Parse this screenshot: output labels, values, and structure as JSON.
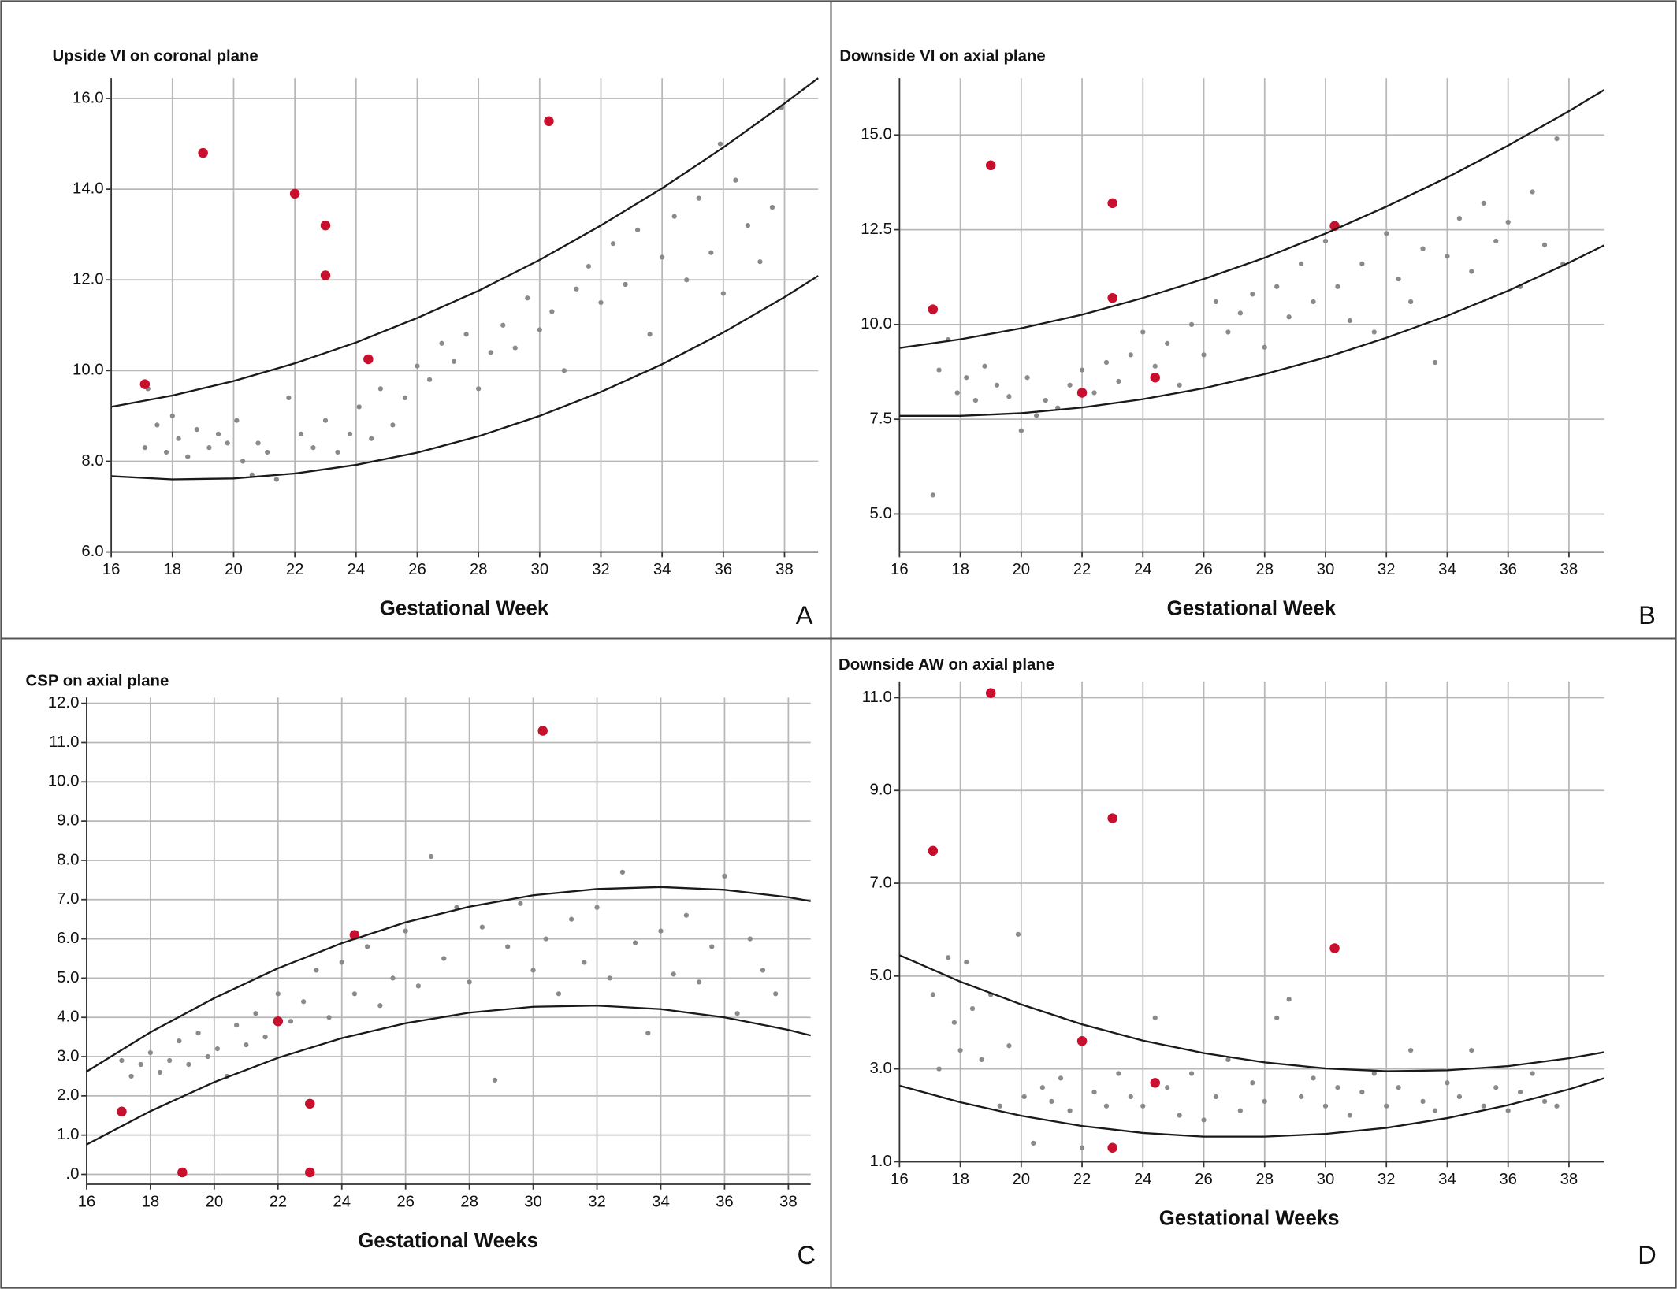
{
  "chart_data": [
    {
      "type": "scatter",
      "title": "Upside VI on coronal plane",
      "xlabel": "Gestational Week",
      "panel": "A",
      "xlim": [
        16,
        39.1
      ],
      "ylim": [
        6,
        16.45
      ],
      "grid": true,
      "xticks": [
        16,
        18,
        20,
        22,
        24,
        26,
        28,
        30,
        32,
        34,
        36,
        38
      ],
      "yticks": [
        {
          "value": 6,
          "label": "6.0"
        },
        {
          "value": 8,
          "label": "8.0"
        },
        {
          "value": 10,
          "label": "10.0"
        },
        {
          "value": 12,
          "label": "12.0"
        },
        {
          "value": 14,
          "label": "14.0"
        },
        {
          "value": 16,
          "label": "16.0"
        }
      ],
      "series": [
        {
          "marker": "dot",
          "color": "#8a8a8a",
          "x": [
            17.1,
            17.2,
            17.5,
            17.8,
            18,
            18.2,
            18.5,
            18.8,
            19.2,
            19.5,
            19.8,
            20.1,
            20.3,
            20.6,
            20.8,
            21.1,
            21.4,
            21.8,
            22.2,
            22.6,
            23,
            23.4,
            23.8,
            24.1,
            24.5,
            24.8,
            25.2,
            25.6,
            26,
            26.4,
            26.8,
            27.2,
            27.6,
            28,
            28.4,
            28.8,
            29.2,
            29.6,
            30,
            30.4,
            30.8,
            31.2,
            31.6,
            32,
            32.4,
            32.8,
            33.2,
            33.6,
            34,
            34.4,
            34.8,
            35.2,
            35.6,
            36,
            36.4,
            36.8,
            37.2,
            37.6,
            37.9,
            35.9
          ],
          "values": [
            8.3,
            9.6,
            8.8,
            8.2,
            9,
            8.5,
            8.1,
            8.7,
            8.3,
            8.6,
            8.4,
            8.9,
            8,
            7.7,
            8.4,
            8.2,
            7.6,
            9.4,
            8.6,
            8.3,
            8.9,
            8.2,
            8.6,
            9.2,
            8.5,
            9.6,
            8.8,
            9.4,
            10.1,
            9.8,
            10.6,
            10.2,
            10.8,
            9.6,
            10.4,
            11,
            10.5,
            11.6,
            10.9,
            11.3,
            10,
            11.8,
            12.3,
            11.5,
            12.8,
            11.9,
            13.1,
            10.8,
            12.5,
            13.4,
            12,
            13.8,
            12.6,
            11.7,
            14.2,
            13.2,
            12.4,
            13.6,
            15.8,
            15
          ]
        },
        {
          "marker": "circle",
          "color": "#c8102e",
          "x": [
            17.1,
            19,
            22,
            23,
            23,
            24.4,
            30.3
          ],
          "values": [
            9.7,
            14.8,
            13.9,
            13.2,
            12.1,
            10.25,
            15.5
          ]
        },
        {
          "marker": "line",
          "color": "#1a1a1a",
          "x": [
            16,
            18,
            20,
            22,
            24,
            26,
            28,
            30,
            32,
            34,
            36,
            38,
            39.1
          ],
          "values": [
            9.2,
            9.45,
            9.77,
            10.16,
            10.62,
            11.16,
            11.76,
            12.44,
            13.2,
            14.02,
            14.92,
            15.89,
            16.45
          ]
        },
        {
          "marker": "line",
          "color": "#1a1a1a",
          "x": [
            16,
            18,
            20,
            22,
            24,
            26,
            28,
            30,
            32,
            34,
            36,
            38,
            39.1
          ],
          "values": [
            7.67,
            7.6,
            7.62,
            7.73,
            7.92,
            8.19,
            8.55,
            9,
            9.53,
            10.14,
            10.84,
            11.62,
            12.09
          ]
        }
      ]
    },
    {
      "type": "scatter",
      "title": "Downside VI on axial plane",
      "xlabel": "Gestational Week",
      "panel": "B",
      "xlim": [
        16,
        39.16
      ],
      "ylim": [
        4,
        16.5
      ],
      "grid": true,
      "xticks": [
        16,
        18,
        20,
        22,
        24,
        26,
        28,
        30,
        32,
        34,
        36,
        38
      ],
      "yticks": [
        {
          "value": 5,
          "label": "5.0"
        },
        7.5,
        {
          "value": 10,
          "label": "10.0"
        },
        12.5,
        {
          "value": 15,
          "label": "15.0"
        }
      ],
      "series": [
        {
          "marker": "dot",
          "color": "#8a8a8a",
          "x": [
            17.1,
            17.3,
            17.6,
            17.9,
            18.2,
            18.5,
            18.8,
            19.2,
            19.6,
            20,
            20.2,
            20.5,
            20.8,
            21.2,
            21.6,
            22,
            22.4,
            22.8,
            23.2,
            23.6,
            24,
            24.4,
            24.8,
            25.2,
            25.6,
            26,
            26.4,
            26.8,
            27.2,
            27.6,
            28,
            28.4,
            28.8,
            29.2,
            29.6,
            30,
            30.4,
            30.8,
            31.2,
            31.6,
            32,
            32.4,
            32.8,
            33.2,
            33.6,
            34,
            34.4,
            34.8,
            35.2,
            35.6,
            36,
            36.4,
            36.8,
            37.2,
            37.6,
            37.8
          ],
          "values": [
            5.5,
            8.8,
            9.6,
            8.2,
            8.6,
            8,
            8.9,
            8.4,
            8.1,
            7.2,
            8.6,
            7.6,
            8,
            7.8,
            8.4,
            8.8,
            8.2,
            9,
            8.5,
            9.2,
            9.8,
            8.9,
            9.5,
            8.4,
            10,
            9.2,
            10.6,
            9.8,
            10.3,
            10.8,
            9.4,
            11,
            10.2,
            11.6,
            10.6,
            12.2,
            11,
            10.1,
            11.6,
            9.8,
            12.4,
            11.2,
            10.6,
            12,
            9,
            11.8,
            12.8,
            11.4,
            13.2,
            12.2,
            12.7,
            11,
            13.5,
            12.1,
            14.9,
            11.6
          ]
        },
        {
          "marker": "circle",
          "color": "#c8102e",
          "x": [
            17.1,
            19,
            22,
            23,
            23,
            24.4,
            30.3
          ],
          "values": [
            10.4,
            14.2,
            8.2,
            13.2,
            10.7,
            8.6,
            12.6
          ]
        },
        {
          "marker": "line",
          "color": "#1a1a1a",
          "x": [
            16,
            18,
            20,
            22,
            24,
            26,
            28,
            30,
            32,
            34,
            36,
            38,
            39.16
          ],
          "values": [
            9.38,
            9.61,
            9.9,
            10.26,
            10.7,
            11.2,
            11.76,
            12.4,
            13.11,
            13.88,
            14.72,
            15.63,
            16.19
          ]
        },
        {
          "marker": "line",
          "color": "#1a1a1a",
          "x": [
            16,
            18,
            20,
            22,
            24,
            26,
            28,
            30,
            32,
            34,
            36,
            38,
            39.16
          ],
          "values": [
            7.59,
            7.59,
            7.66,
            7.81,
            8.03,
            8.32,
            8.69,
            9.13,
            9.65,
            10.23,
            10.89,
            11.63,
            12.09
          ]
        }
      ]
    },
    {
      "type": "scatter",
      "title": "CSP on axial plane",
      "xlabel": "Gestational Weeks",
      "panel": "C",
      "xlim": [
        16,
        38.7
      ],
      "ylim": [
        -0.25,
        12.15
      ],
      "grid": true,
      "xticks": [
        16,
        18,
        20,
        22,
        24,
        26,
        28,
        30,
        32,
        34,
        36,
        38
      ],
      "yticks": [
        {
          "value": 0,
          "label": ".0"
        },
        {
          "value": 1,
          "label": "1.0"
        },
        {
          "value": 2,
          "label": "2.0"
        },
        {
          "value": 3,
          "label": "3.0"
        },
        {
          "value": 4,
          "label": "4.0"
        },
        {
          "value": 5,
          "label": "5.0"
        },
        {
          "value": 6,
          "label": "6.0"
        },
        {
          "value": 7,
          "label": "7.0"
        },
        {
          "value": 8,
          "label": "8.0"
        },
        {
          "value": 9,
          "label": "9.0"
        },
        {
          "value": 10,
          "label": "10.0"
        },
        {
          "value": 11,
          "label": "11.0"
        },
        {
          "value": 12,
          "label": "12.0"
        }
      ],
      "series": [
        {
          "marker": "dot",
          "color": "#8a8a8a",
          "x": [
            17.1,
            17.4,
            17.7,
            18,
            18.3,
            18.6,
            18.9,
            19.2,
            19.5,
            19.8,
            20.1,
            20.4,
            20.7,
            21,
            21.3,
            21.6,
            22,
            22.4,
            22.8,
            23.2,
            23.6,
            24,
            24.4,
            24.8,
            25.2,
            25.6,
            26,
            26.4,
            26.8,
            27.2,
            27.6,
            28,
            28.4,
            28.8,
            29.2,
            29.6,
            30,
            30.4,
            30.8,
            31.2,
            31.6,
            32,
            32.4,
            32.8,
            33.2,
            33.6,
            34,
            34.4,
            34.8,
            35.2,
            35.6,
            36,
            36.4,
            36.8,
            37.2,
            37.6
          ],
          "values": [
            2.9,
            2.5,
            2.8,
            3.1,
            2.6,
            2.9,
            3.4,
            2.8,
            3.6,
            3,
            3.2,
            2.5,
            3.8,
            3.3,
            4.1,
            3.5,
            4.6,
            3.9,
            4.4,
            5.2,
            4,
            5.4,
            4.6,
            5.8,
            4.3,
            5,
            6.2,
            4.8,
            8.1,
            5.5,
            6.8,
            4.9,
            6.3,
            2.4,
            5.8,
            6.9,
            5.2,
            6,
            4.6,
            6.5,
            5.4,
            6.8,
            5,
            7.7,
            5.9,
            3.6,
            6.2,
            5.1,
            6.6,
            4.9,
            5.8,
            7.6,
            4.1,
            6,
            5.2,
            4.6
          ]
        },
        {
          "marker": "circle",
          "color": "#c8102e",
          "x": [
            17.1,
            19,
            22,
            23,
            23,
            24.4,
            30.3
          ],
          "values": [
            1.6,
            0.05,
            3.9,
            1.8,
            0.05,
            6.1,
            11.3
          ]
        },
        {
          "marker": "line",
          "color": "#1a1a1a",
          "x": [
            16,
            18,
            20,
            22,
            24,
            26,
            28,
            30,
            32,
            34,
            36,
            38,
            38.7
          ],
          "values": [
            2.62,
            3.62,
            4.49,
            5.25,
            5.89,
            6.42,
            6.82,
            7.11,
            7.27,
            7.32,
            7.25,
            7.06,
            6.96
          ]
        },
        {
          "marker": "line",
          "color": "#1a1a1a",
          "x": [
            16,
            18,
            20,
            22,
            24,
            26,
            28,
            30,
            32,
            34,
            36,
            38,
            38.7
          ],
          "values": [
            0.76,
            1.61,
            2.35,
            2.97,
            3.47,
            3.85,
            4.12,
            4.27,
            4.3,
            4.21,
            4,
            3.68,
            3.54
          ]
        }
      ]
    },
    {
      "type": "scatter",
      "title": "Downside AW on axial plane",
      "xlabel": "Gestational Weeks",
      "panel": "D",
      "xlim": [
        16,
        39.16
      ],
      "ylim": [
        1,
        11.35
      ],
      "grid": true,
      "xticks": [
        16,
        18,
        20,
        22,
        24,
        26,
        28,
        30,
        32,
        34,
        36,
        38
      ],
      "yticks": [
        {
          "value": 1,
          "label": "1.0"
        },
        {
          "value": 3,
          "label": "3.0"
        },
        {
          "value": 5,
          "label": "5.0"
        },
        {
          "value": 7,
          "label": "7.0"
        },
        {
          "value": 9,
          "label": "9.0"
        },
        {
          "value": 11,
          "label": "11.0"
        }
      ],
      "series": [
        {
          "marker": "dot",
          "color": "#8a8a8a",
          "x": [
            17.1,
            17.3,
            17.6,
            17.8,
            18,
            18.2,
            18.4,
            18.7,
            19,
            19.3,
            19.6,
            19.9,
            20.1,
            20.4,
            20.7,
            21,
            21.3,
            21.6,
            22,
            22.4,
            22.8,
            23.2,
            23.6,
            24,
            24.4,
            24.8,
            25.2,
            25.6,
            26,
            26.4,
            26.8,
            27.2,
            27.6,
            28,
            28.4,
            28.8,
            29.2,
            29.6,
            30,
            30.4,
            30.8,
            31.2,
            31.6,
            32,
            32.4,
            32.8,
            33.2,
            33.6,
            34,
            34.4,
            34.8,
            35.2,
            35.6,
            36,
            36.4,
            36.8,
            37.2,
            37.6
          ],
          "values": [
            4.6,
            3,
            5.4,
            4,
            3.4,
            5.3,
            4.3,
            3.2,
            4.6,
            2.2,
            3.5,
            5.9,
            2.4,
            1.4,
            2.6,
            2.3,
            2.8,
            2.1,
            1.3,
            2.5,
            2.2,
            2.9,
            2.4,
            2.2,
            4.1,
            2.6,
            2,
            2.9,
            1.9,
            2.4,
            3.2,
            2.1,
            2.7,
            2.3,
            4.1,
            4.5,
            2.4,
            2.8,
            2.2,
            2.6,
            2,
            2.5,
            2.9,
            2.2,
            2.6,
            3.4,
            2.3,
            2.1,
            2.7,
            2.4,
            3.4,
            2.2,
            2.6,
            2.1,
            2.5,
            2.9,
            2.3,
            2.2
          ]
        },
        {
          "marker": "circle",
          "color": "#c8102e",
          "x": [
            17.1,
            19,
            22,
            23,
            23,
            24.4,
            30.3
          ],
          "values": [
            7.7,
            11.1,
            3.6,
            8.4,
            1.3,
            2.7,
            5.6
          ]
        },
        {
          "marker": "line",
          "color": "#1a1a1a",
          "x": [
            16,
            18,
            20,
            22,
            24,
            26,
            28,
            30,
            32,
            34,
            36,
            38,
            39.16
          ],
          "values": [
            5.45,
            4.88,
            4.39,
            3.96,
            3.61,
            3.34,
            3.14,
            3.01,
            2.95,
            2.97,
            3.06,
            3.23,
            3.36
          ]
        },
        {
          "marker": "line",
          "color": "#1a1a1a",
          "x": [
            16,
            18,
            20,
            22,
            24,
            26,
            28,
            30,
            32,
            34,
            36,
            38,
            39.16
          ],
          "values": [
            2.64,
            2.28,
            1.99,
            1.77,
            1.62,
            1.54,
            1.54,
            1.6,
            1.73,
            1.94,
            2.22,
            2.56,
            2.8
          ]
        }
      ]
    }
  ]
}
